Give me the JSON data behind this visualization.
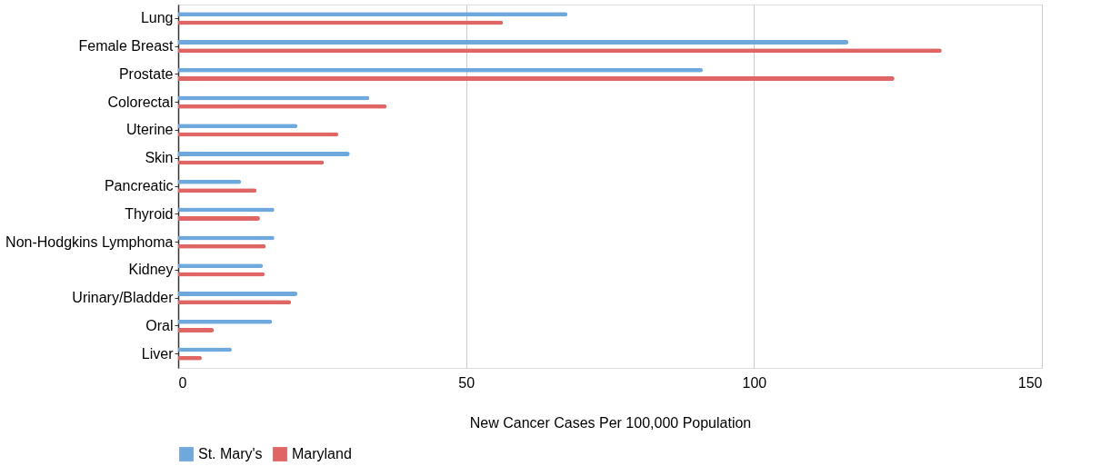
{
  "chart_data": {
    "type": "bar",
    "orientation": "horizontal",
    "xlabel": "New Cancer Cases Per 100,000 Population",
    "categories": [
      "Lung",
      "Female Breast",
      "Prostate",
      "Colorectal",
      "Uterine",
      "Skin",
      "Pancreatic",
      "Thyroid",
      "Non-Hodgkins Lymphoma",
      "Kidney",
      "Urinary/Bladder",
      "Oral",
      "Liver"
    ],
    "series": [
      {
        "name": "St. Mary's",
        "color": "#6fa8dc",
        "values": [
          67.6,
          116.4,
          91.1,
          33.2,
          20.7,
          29.8,
          10.9,
          16.7,
          16.7,
          14.7,
          20.7,
          16.3,
          9.3
        ]
      },
      {
        "name": "Maryland",
        "color": "#e06666",
        "values": [
          56.4,
          132.6,
          124.4,
          36.2,
          27.8,
          25.3,
          13.6,
          14.2,
          15.2,
          15.0,
          19.6,
          6.2,
          4.1
        ]
      }
    ],
    "xlim": [
      0,
      150
    ],
    "xticks": [
      0,
      50,
      100,
      150
    ],
    "grid": "x",
    "legend": "bottom"
  }
}
